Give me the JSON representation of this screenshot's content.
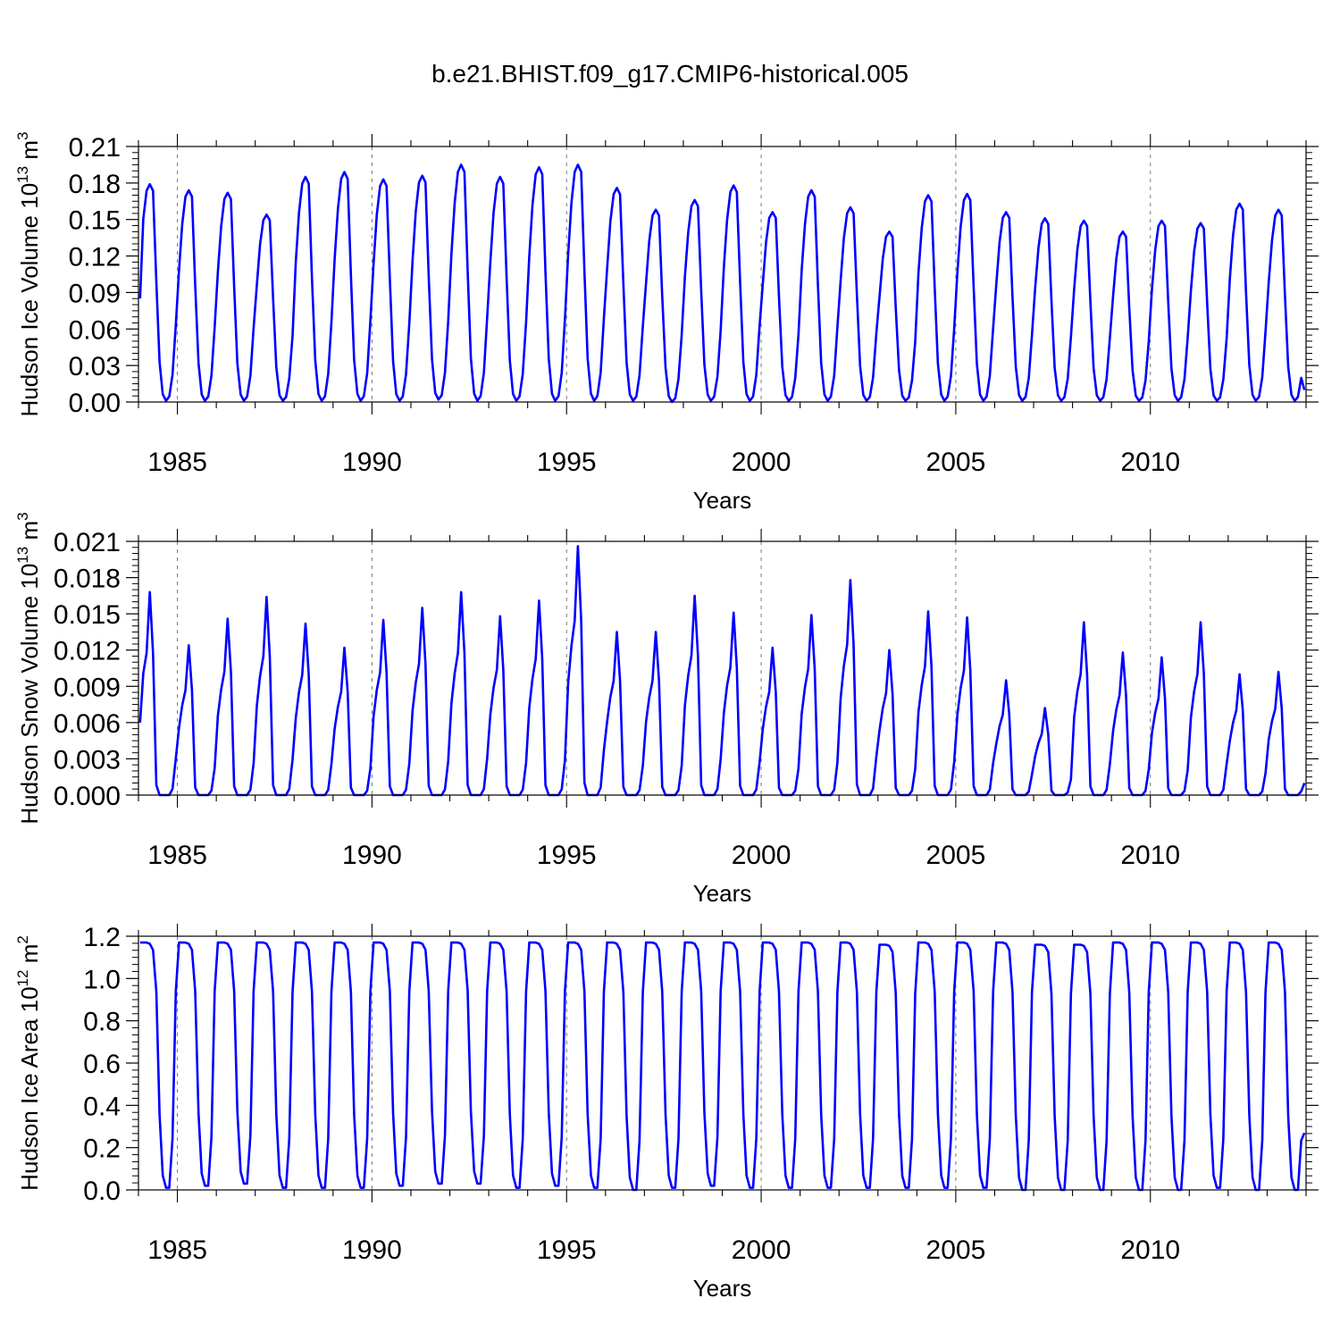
{
  "title": "b.e21.BHIST.f09_g17.CMIP6-historical.005",
  "chart_data": [
    {
      "type": "line",
      "name": "ice-volume",
      "ylabel_main": "Hudson Ice Volume 10",
      "ylabel_exp": "13",
      "ylabel_unit": " m",
      "ylabel_unit_exp": "3",
      "xlabel": "Years",
      "xlim": [
        1984.0,
        2014.0
      ],
      "ylim": [
        0.0,
        0.21
      ],
      "yticks": [
        0.0,
        0.03,
        0.06,
        0.09,
        0.12,
        0.15,
        0.18,
        0.21
      ],
      "ytick_labels": [
        "0.00",
        "0.03",
        "0.06",
        "0.09",
        "0.12",
        "0.15",
        "0.18",
        "0.21"
      ],
      "xticks": [
        1985,
        1990,
        1995,
        2000,
        2005,
        2010
      ],
      "xtick_labels": [
        "1985",
        "1990",
        "1995",
        "2000",
        "2005",
        "2010"
      ],
      "series_color": "#0000ff",
      "annual_peak": [
        0.179,
        0.174,
        0.172,
        0.154,
        0.185,
        0.189,
        0.183,
        0.186,
        0.195,
        0.185,
        0.193,
        0.195,
        0.176,
        0.158,
        0.166,
        0.178,
        0.156,
        0.174,
        0.16,
        0.14,
        0.17,
        0.171,
        0.156,
        0.151,
        0.149,
        0.14,
        0.149,
        0.147,
        0.163,
        0.158
      ],
      "annual_min": [
        0.001,
        0.001,
        0.001,
        0.001,
        0.001,
        0.001,
        0.001,
        0.002,
        0.001,
        0.001,
        0.001,
        0.001,
        0.001,
        0.0,
        0.001,
        0.001,
        0.001,
        0.001,
        0.001,
        0.001,
        0.001,
        0.001,
        0.001,
        0.001,
        0.001,
        0.001,
        0.001,
        0.001,
        0.001,
        0.001
      ],
      "start_value": 0.085,
      "end_value": 0.01
    },
    {
      "type": "line",
      "name": "snow-volume",
      "ylabel_main": "Hudson Snow Volume 10",
      "ylabel_exp": "13",
      "ylabel_unit": " m",
      "ylabel_unit_exp": "3",
      "xlabel": "Years",
      "xlim": [
        1984.0,
        2014.0
      ],
      "ylim": [
        0.0,
        0.021
      ],
      "yticks": [
        0.0,
        0.003,
        0.006,
        0.009,
        0.012,
        0.015,
        0.018,
        0.021
      ],
      "ytick_labels": [
        "0.000",
        "0.003",
        "0.006",
        "0.009",
        "0.012",
        "0.015",
        "0.018",
        "0.021"
      ],
      "xticks": [
        1985,
        1990,
        1995,
        2000,
        2005,
        2010
      ],
      "xtick_labels": [
        "1985",
        "1990",
        "1995",
        "2000",
        "2005",
        "2010"
      ],
      "series_color": "#0000ff",
      "annual_peak": [
        0.0168,
        0.0124,
        0.0146,
        0.0164,
        0.0142,
        0.0122,
        0.0145,
        0.0155,
        0.0168,
        0.0148,
        0.0161,
        0.0206,
        0.0135,
        0.0135,
        0.0165,
        0.0151,
        0.0122,
        0.0149,
        0.0178,
        0.012,
        0.0152,
        0.0147,
        0.0095,
        0.0072,
        0.0143,
        0.0118,
        0.0114,
        0.0143,
        0.01,
        0.0102
      ],
      "annual_min": [
        0.0,
        0.0,
        0.0,
        0.0,
        0.0,
        0.0,
        0.0,
        0.0,
        0.0,
        0.0,
        0.0,
        0.0,
        0.0,
        0.0,
        0.0,
        0.0,
        0.0,
        0.0,
        0.0,
        0.0,
        0.0,
        0.0,
        0.0,
        0.0,
        0.0,
        0.0,
        0.0,
        0.0,
        0.0,
        0.0
      ],
      "start_value": 0.006,
      "end_value": 0.001
    },
    {
      "type": "line",
      "name": "ice-area",
      "ylabel_main": "Hudson Ice Area 10",
      "ylabel_exp": "12",
      "ylabel_unit": " m",
      "ylabel_unit_exp": "2",
      "xlabel": "Years",
      "xlim": [
        1984.0,
        2014.0
      ],
      "ylim": [
        0.0,
        1.2
      ],
      "yticks": [
        0.0,
        0.2,
        0.4,
        0.6,
        0.8,
        1.0,
        1.2
      ],
      "ytick_labels": [
        "0.0",
        "0.2",
        "0.4",
        "0.6",
        "0.8",
        "1.0",
        "1.2"
      ],
      "xticks": [
        1985,
        1990,
        1995,
        2000,
        2005,
        2010
      ],
      "xtick_labels": [
        "1985",
        "1990",
        "1995",
        "2000",
        "2005",
        "2010"
      ],
      "series_color": "#0000ff",
      "annual_peak": [
        1.17,
        1.17,
        1.17,
        1.17,
        1.17,
        1.17,
        1.17,
        1.17,
        1.17,
        1.17,
        1.17,
        1.17,
        1.17,
        1.17,
        1.17,
        1.17,
        1.17,
        1.17,
        1.17,
        1.16,
        1.17,
        1.17,
        1.17,
        1.16,
        1.16,
        1.17,
        1.17,
        1.17,
        1.17,
        1.17
      ],
      "annual_min": [
        0.01,
        0.02,
        0.03,
        0.01,
        0.01,
        0.01,
        0.02,
        0.03,
        0.03,
        0.01,
        0.02,
        0.01,
        0.0,
        0.01,
        0.02,
        0.01,
        0.01,
        0.01,
        0.01,
        0.01,
        0.01,
        0.01,
        0.0,
        0.0,
        0.0,
        0.0,
        0.0,
        0.01,
        0.0,
        0.0
      ],
      "start_value": 1.17,
      "end_value": 0.27
    }
  ]
}
